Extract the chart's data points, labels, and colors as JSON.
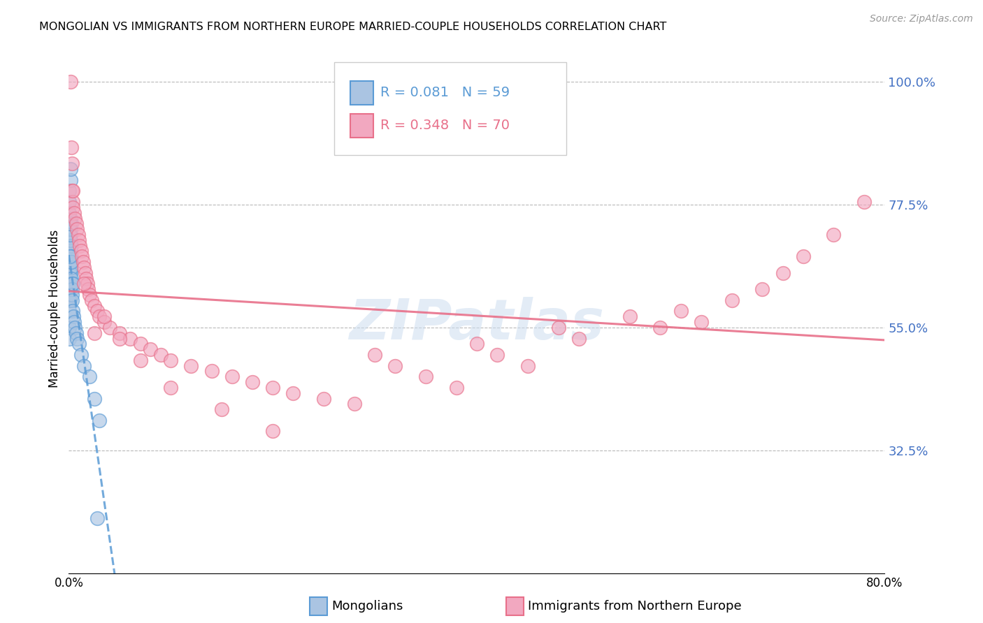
{
  "title": "MONGOLIAN VS IMMIGRANTS FROM NORTHERN EUROPE MARRIED-COUPLE HOUSEHOLDS CORRELATION CHART",
  "source": "Source: ZipAtlas.com",
  "ylabel": "Married-couple Households",
  "xlim": [
    0.0,
    80.0
  ],
  "ylim": [
    10.0,
    107.0
  ],
  "yticks": [
    32.5,
    55.0,
    77.5,
    100.0
  ],
  "ytick_labels": [
    "32.5%",
    "55.0%",
    "77.5%",
    "100.0%"
  ],
  "blue_R": 0.081,
  "blue_N": 59,
  "pink_R": 0.348,
  "pink_N": 70,
  "blue_color": "#aac4e2",
  "pink_color": "#f2a8c0",
  "blue_edge": "#5b9bd5",
  "pink_edge": "#e8708a",
  "blue_line_color": "#5b9bd5",
  "pink_line_color": "#e8708a",
  "watermark": "ZIPatlas",
  "blue_x": [
    0.05,
    0.05,
    0.06,
    0.06,
    0.07,
    0.07,
    0.08,
    0.08,
    0.09,
    0.09,
    0.1,
    0.1,
    0.11,
    0.11,
    0.12,
    0.12,
    0.13,
    0.14,
    0.15,
    0.15,
    0.16,
    0.17,
    0.18,
    0.19,
    0.2,
    0.2,
    0.21,
    0.22,
    0.23,
    0.24,
    0.25,
    0.26,
    0.27,
    0.28,
    0.29,
    0.3,
    0.32,
    0.35,
    0.4,
    0.45,
    0.5,
    0.6,
    0.7,
    0.8,
    1.0,
    1.2,
    1.5,
    2.0,
    2.5,
    3.0,
    0.05,
    0.06,
    0.07,
    0.08,
    0.1,
    0.12,
    0.15,
    0.2,
    2.8
  ],
  "blue_y": [
    55,
    53,
    60,
    58,
    63,
    61,
    65,
    62,
    64,
    60,
    66,
    63,
    67,
    64,
    68,
    65,
    62,
    63,
    70,
    67,
    69,
    68,
    72,
    65,
    75,
    71,
    73,
    74,
    70,
    68,
    66,
    67,
    64,
    63,
    62,
    61,
    60,
    63,
    58,
    57,
    56,
    55,
    54,
    53,
    52,
    50,
    48,
    46,
    42,
    38,
    80,
    78,
    76,
    72,
    74,
    68,
    82,
    84,
    20
  ],
  "pink_x": [
    0.2,
    0.25,
    0.3,
    0.35,
    0.4,
    0.5,
    0.6,
    0.7,
    0.8,
    0.9,
    1.0,
    1.1,
    1.2,
    1.3,
    1.4,
    1.5,
    1.6,
    1.7,
    1.8,
    1.9,
    2.0,
    2.2,
    2.5,
    2.8,
    3.0,
    3.5,
    4.0,
    5.0,
    6.0,
    7.0,
    8.0,
    9.0,
    10.0,
    12.0,
    14.0,
    16.0,
    18.0,
    20.0,
    22.0,
    25.0,
    28.0,
    30.0,
    32.0,
    35.0,
    38.0,
    40.0,
    42.0,
    45.0,
    48.0,
    50.0,
    55.0,
    58.0,
    60.0,
    62.0,
    65.0,
    68.0,
    70.0,
    72.0,
    75.0,
    78.0,
    0.3,
    0.4,
    1.5,
    2.5,
    3.5,
    5.0,
    7.0,
    10.0,
    15.0,
    20.0
  ],
  "pink_y": [
    100,
    88,
    80,
    78,
    77,
    76,
    75,
    74,
    73,
    72,
    71,
    70,
    69,
    68,
    67,
    66,
    65,
    64,
    63,
    62,
    61,
    60,
    59,
    58,
    57,
    56,
    55,
    54,
    53,
    52,
    51,
    50,
    49,
    48,
    47,
    46,
    45,
    44,
    43,
    42,
    41,
    50,
    48,
    46,
    44,
    52,
    50,
    48,
    55,
    53,
    57,
    55,
    58,
    56,
    60,
    62,
    65,
    68,
    72,
    78,
    85,
    80,
    63,
    54,
    57,
    53,
    49,
    44,
    40,
    36
  ]
}
